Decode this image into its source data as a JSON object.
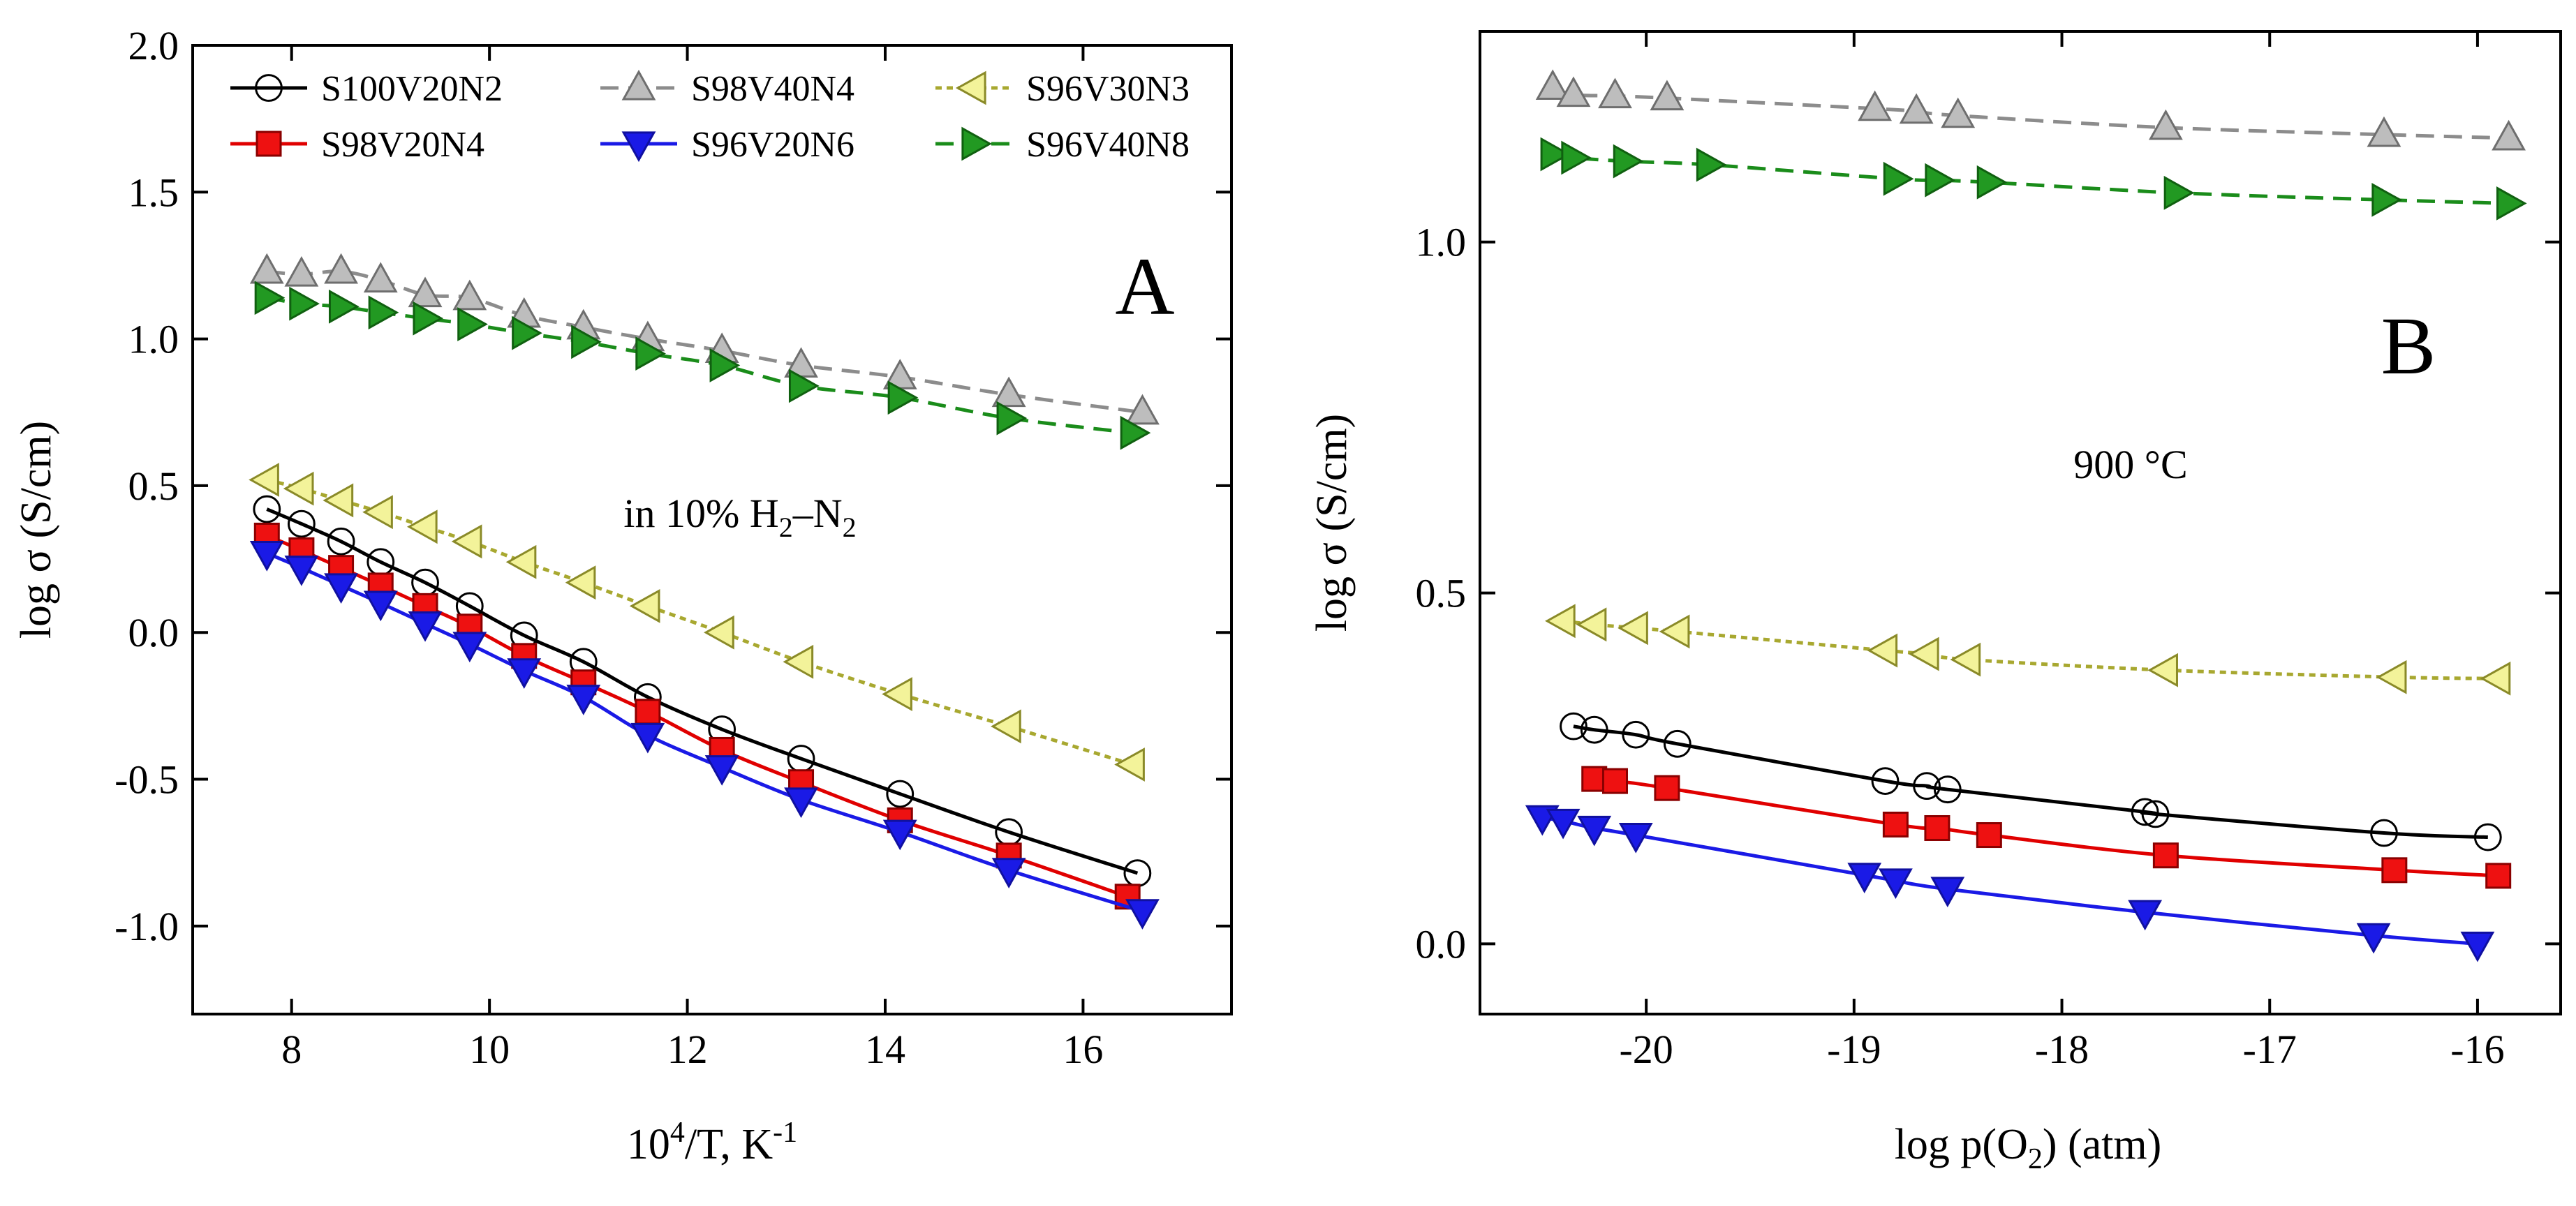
{
  "chart_data": [
    {
      "type": "scatter",
      "panel_label": "A",
      "annotation": {
        "text": "in 10% H",
        "sub1": "2",
        "mid": "–N",
        "sub2": "2"
      },
      "xlabel": {
        "base": "10",
        "sup": "4",
        "rest": "/T, K",
        "sup2": "-1"
      },
      "ylabel": "log σ (S/cm)",
      "xlim": [
        7,
        17.5
      ],
      "ylim": [
        -1.3,
        2.0
      ],
      "xticks": [
        8,
        10,
        12,
        14,
        16
      ],
      "yticks": [
        -1.0,
        -0.5,
        0.0,
        0.5,
        1.0,
        1.5,
        2.0
      ],
      "xtick_labels": [
        "8",
        "10",
        "12",
        "14",
        "16"
      ],
      "ytick_labels": [
        "-1.0",
        "-0.5",
        "0.0",
        "0.5",
        "1.0",
        "1.5",
        "2.0"
      ],
      "legend": {
        "placement": "top",
        "columns": 3
      },
      "series": [
        {
          "name": "S100V20N2",
          "marker": "circle",
          "line": "solid",
          "color": "#000000",
          "fill": "none",
          "x": [
            7.75,
            8.1,
            8.5,
            8.9,
            9.35,
            9.8,
            10.35,
            10.95,
            11.6,
            12.35,
            13.15,
            14.15,
            15.25,
            16.55
          ],
          "y": [
            0.42,
            0.37,
            0.31,
            0.24,
            0.17,
            0.09,
            -0.01,
            -0.1,
            -0.22,
            -0.33,
            -0.43,
            -0.55,
            -0.68,
            -0.82
          ]
        },
        {
          "name": "S98V20N4",
          "marker": "square",
          "line": "solid",
          "color": "#e00000",
          "fill": "#ee1111",
          "x": [
            7.75,
            8.1,
            8.5,
            8.9,
            9.35,
            9.8,
            10.35,
            10.95,
            11.6,
            12.35,
            13.15,
            14.15,
            15.25,
            16.45
          ],
          "y": [
            0.33,
            0.28,
            0.22,
            0.16,
            0.09,
            0.02,
            -0.08,
            -0.17,
            -0.27,
            -0.4,
            -0.51,
            -0.64,
            -0.76,
            -0.9
          ]
        },
        {
          "name": "S98V40N4",
          "marker": "triangle-up",
          "line": "dashed",
          "color": "#8c8c8c",
          "fill": "#bdbdbd",
          "x": [
            7.75,
            8.1,
            8.5,
            8.9,
            9.35,
            9.8,
            10.35,
            10.95,
            11.6,
            12.35,
            13.15,
            14.15,
            15.25,
            16.6
          ],
          "y": [
            1.23,
            1.22,
            1.23,
            1.2,
            1.15,
            1.14,
            1.08,
            1.04,
            1.0,
            0.96,
            0.91,
            0.87,
            0.81,
            0.75
          ]
        },
        {
          "name": "S96V20N6",
          "marker": "triangle-down",
          "line": "solid",
          "color": "#1a1ae6",
          "fill": "#1a1ae6",
          "x": [
            7.75,
            8.1,
            8.5,
            8.9,
            9.35,
            9.8,
            10.35,
            10.95,
            11.6,
            12.35,
            13.15,
            14.15,
            15.25,
            16.6
          ],
          "y": [
            0.27,
            0.22,
            0.16,
            0.1,
            0.03,
            -0.04,
            -0.13,
            -0.22,
            -0.35,
            -0.46,
            -0.57,
            -0.68,
            -0.81,
            -0.95
          ]
        },
        {
          "name": "S96V30N3",
          "marker": "triangle-left",
          "line": "dotted",
          "color": "#a8a830",
          "fill": "#f3f39a",
          "x": [
            7.75,
            8.1,
            8.5,
            8.9,
            9.35,
            9.8,
            10.35,
            10.95,
            11.6,
            12.35,
            13.15,
            14.15,
            15.25,
            16.5
          ],
          "y": [
            0.52,
            0.49,
            0.45,
            0.41,
            0.36,
            0.31,
            0.24,
            0.17,
            0.09,
            0.0,
            -0.1,
            -0.21,
            -0.32,
            -0.45
          ]
        },
        {
          "name": "S96V40N8",
          "marker": "triangle-right",
          "line": "dashed",
          "color": "#1a8c1a",
          "fill": "#229922",
          "x": [
            7.75,
            8.1,
            8.5,
            8.9,
            9.35,
            9.8,
            10.35,
            10.95,
            11.6,
            12.35,
            13.15,
            14.15,
            15.25,
            16.5
          ],
          "y": [
            1.14,
            1.12,
            1.11,
            1.09,
            1.07,
            1.05,
            1.02,
            0.99,
            0.95,
            0.91,
            0.84,
            0.8,
            0.73,
            0.68
          ]
        }
      ]
    },
    {
      "type": "scatter",
      "panel_label": "B",
      "annotation": {
        "text": "900 °C"
      },
      "xlabel": {
        "base": "log p(O",
        "sub": "2",
        "rest": ") (atm)"
      },
      "ylabel": "log σ (S/cm)",
      "xlim": [
        -20.8,
        -15.6
      ],
      "ylim": [
        -0.1,
        1.3
      ],
      "xticks": [
        -20,
        -19,
        -18,
        -17,
        -16
      ],
      "yticks": [
        0.0,
        0.5,
        1.0
      ],
      "xtick_labels": [
        "-20",
        "-19",
        "-18",
        "-17",
        "-16"
      ],
      "ytick_labels": [
        "0.0",
        "0.5",
        "1.0"
      ],
      "series": [
        {
          "name": "S100V20N2",
          "marker": "circle",
          "line": "solid",
          "color": "#000000",
          "fill": "none",
          "x": [
            -20.35,
            -20.25,
            -20.05,
            -19.85,
            -18.85,
            -18.65,
            -18.55,
            -17.6,
            -17.55,
            -16.45,
            -15.95
          ],
          "y": [
            0.31,
            0.305,
            0.298,
            0.285,
            0.232,
            0.225,
            0.22,
            0.188,
            0.185,
            0.158,
            0.152
          ]
        },
        {
          "name": "S98V20N4",
          "marker": "square",
          "line": "solid",
          "color": "#e00000",
          "fill": "#ee1111",
          "x": [
            -20.25,
            -20.15,
            -19.9,
            -18.8,
            -18.6,
            -18.35,
            -17.5,
            -16.4,
            -15.9
          ],
          "y": [
            0.235,
            0.232,
            0.222,
            0.17,
            0.165,
            0.155,
            0.126,
            0.105,
            0.097
          ]
        },
        {
          "name": "S98V40N4",
          "marker": "triangle-up",
          "line": "dashed",
          "color": "#8c8c8c",
          "fill": "#bdbdbd",
          "x": [
            -20.45,
            -20.35,
            -20.15,
            -19.9,
            -18.9,
            -18.7,
            -18.5,
            -17.5,
            -16.45,
            -15.85
          ],
          "y": [
            1.22,
            1.21,
            1.208,
            1.205,
            1.19,
            1.186,
            1.18,
            1.163,
            1.153,
            1.148
          ]
        },
        {
          "name": "S96V20N6",
          "marker": "triangle-down",
          "line": "solid",
          "color": "#1a1ae6",
          "fill": "#1a1ae6",
          "x": [
            -20.5,
            -20.4,
            -20.25,
            -20.05,
            -18.95,
            -18.8,
            -18.55,
            -17.6,
            -16.5,
            -16.0
          ],
          "y": [
            0.18,
            0.175,
            0.165,
            0.155,
            0.098,
            0.09,
            0.078,
            0.045,
            0.012,
            0.0
          ]
        },
        {
          "name": "S96V30N3",
          "marker": "triangle-left",
          "line": "dotted",
          "color": "#a8a830",
          "fill": "#f3f39a",
          "x": [
            -20.4,
            -20.25,
            -20.05,
            -19.85,
            -18.85,
            -18.65,
            -18.45,
            -17.5,
            -16.4,
            -15.9
          ],
          "y": [
            0.46,
            0.455,
            0.45,
            0.445,
            0.418,
            0.413,
            0.405,
            0.39,
            0.38,
            0.378
          ]
        },
        {
          "name": "S96V40N8",
          "marker": "triangle-right",
          "line": "dashed",
          "color": "#1a8c1a",
          "fill": "#229922",
          "x": [
            -20.45,
            -20.35,
            -20.1,
            -19.7,
            -18.8,
            -18.6,
            -18.35,
            -17.45,
            -16.45,
            -15.85
          ],
          "y": [
            1.125,
            1.12,
            1.115,
            1.11,
            1.09,
            1.088,
            1.085,
            1.07,
            1.06,
            1.055
          ]
        }
      ]
    }
  ]
}
